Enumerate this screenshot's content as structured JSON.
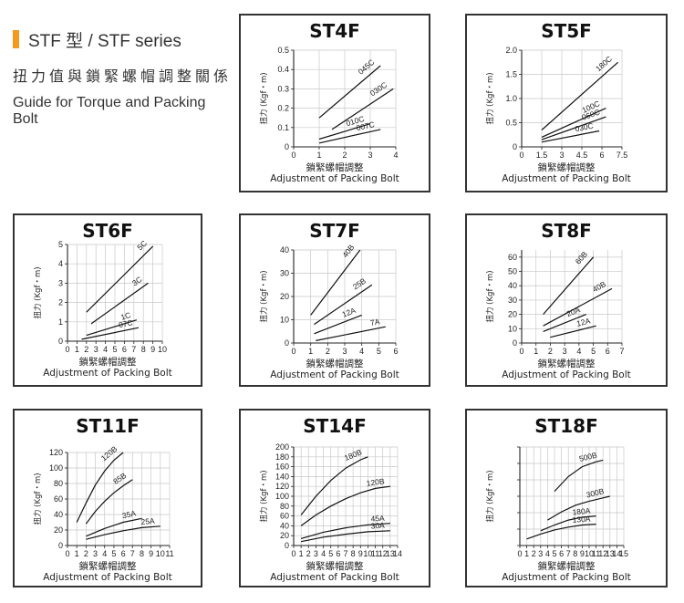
{
  "header": {
    "series_title": "STF 型 / STF series",
    "zh_title": "扭力值與鎖緊螺帽調整關係",
    "en_title": "Guide for Torque and Packing Bolt"
  },
  "chart_data": [
    {
      "type": "line",
      "title": "ST4F",
      "xlabel_zh": "鎖緊螺帽調整",
      "xlabel": "Adjustment of Packing Bolt",
      "ylabel": "扭力 (Kgf・m)",
      "xlim": [
        0,
        4
      ],
      "ylim": [
        0,
        0.5
      ],
      "xticks": [
        0,
        1,
        2,
        3,
        4
      ],
      "xtick_labels": [
        "0",
        "1",
        "2",
        "3",
        "4"
      ],
      "yticks": [
        0,
        0.1,
        0.2,
        0.3,
        0.4,
        0.5
      ],
      "ytick_labels": [
        "0",
        "0.1",
        "0.2",
        "0.3",
        "0.4",
        "0.5"
      ],
      "grid": true,
      "series": [
        {
          "name": "045C",
          "x": [
            1,
            3.4
          ],
          "y": [
            0.15,
            0.42
          ]
        },
        {
          "name": "030C",
          "x": [
            1.5,
            3.9
          ],
          "y": [
            0.09,
            0.3
          ]
        },
        {
          "name": "010C",
          "x": [
            1,
            3
          ],
          "y": [
            0.04,
            0.12
          ]
        },
        {
          "name": "007C",
          "x": [
            1,
            3.4
          ],
          "y": [
            0.02,
            0.09
          ]
        }
      ]
    },
    {
      "type": "line",
      "title": "ST5F",
      "xlabel_zh": "鎖緊螺帽調整",
      "xlabel": "Adjustment of Packing Bolt",
      "ylabel": "扭力 (Kgf・m)",
      "xlim": [
        0,
        7.5
      ],
      "ylim": [
        0,
        2.0
      ],
      "xticks": [
        0,
        1.5,
        3,
        4.5,
        6,
        7.5
      ],
      "xtick_labels": [
        "0",
        "1.5",
        "3",
        "4.5",
        "6",
        "7.5"
      ],
      "yticks": [
        0,
        0.5,
        1.0,
        1.5,
        2.0
      ],
      "ytick_labels": [
        "0",
        "0.5",
        "1.0",
        "1.5",
        "2.0"
      ],
      "grid": true,
      "series": [
        {
          "name": "180C",
          "x": [
            1.5,
            7.2
          ],
          "y": [
            0.35,
            1.75
          ]
        },
        {
          "name": "100C",
          "x": [
            1.5,
            6.3
          ],
          "y": [
            0.2,
            0.8
          ]
        },
        {
          "name": "060C",
          "x": [
            1.5,
            6.3
          ],
          "y": [
            0.15,
            0.62
          ]
        },
        {
          "name": "030C",
          "x": [
            1.5,
            5.8
          ],
          "y": [
            0.1,
            0.33
          ]
        }
      ]
    },
    {
      "type": "line",
      "title": "ST6F",
      "xlabel_zh": "鎖緊螺帽調整",
      "xlabel": "Adjustment of Packing Bolt",
      "ylabel": "扭力 (Kgf・m)",
      "xlim": [
        0,
        10
      ],
      "ylim": [
        0,
        5
      ],
      "xticks": [
        0,
        1,
        2,
        3,
        4,
        5,
        6,
        7,
        8,
        9,
        10
      ],
      "xtick_labels": [
        "0",
        "1",
        "2",
        "3",
        "4",
        "5",
        "6",
        "7",
        "8",
        "9",
        "10"
      ],
      "yticks": [
        0,
        1,
        2,
        3,
        4,
        5
      ],
      "ytick_labels": [
        "0",
        "1",
        "2",
        "3",
        "4",
        "5"
      ],
      "grid": true,
      "series": [
        {
          "name": "5C",
          "x": [
            2,
            9
          ],
          "y": [
            1.5,
            4.9
          ]
        },
        {
          "name": "3C",
          "x": [
            2.5,
            8.5
          ],
          "y": [
            0.9,
            3.0
          ]
        },
        {
          "name": "1C",
          "x": [
            2,
            7.3
          ],
          "y": [
            0.3,
            1.1
          ]
        },
        {
          "name": "07C",
          "x": [
            1.5,
            7.5
          ],
          "y": [
            0.1,
            0.7
          ]
        }
      ]
    },
    {
      "type": "line",
      "title": "ST7F",
      "xlabel_zh": "鎖緊螺帽調整",
      "xlabel": "Adjustment of Packing Bolt",
      "ylabel": "扭力 (Kgf・m)",
      "xlim": [
        0,
        6
      ],
      "ylim": [
        0,
        40
      ],
      "xticks": [
        0,
        1,
        2,
        3,
        4,
        5,
        6
      ],
      "xtick_labels": [
        "0",
        "1",
        "2",
        "3",
        "4",
        "5",
        "6"
      ],
      "yticks": [
        0,
        10,
        20,
        30,
        40
      ],
      "ytick_labels": [
        "0",
        "10",
        "20",
        "30",
        "40"
      ],
      "grid": true,
      "series": [
        {
          "name": "40B",
          "x": [
            1,
            3.9
          ],
          "y": [
            12,
            40
          ]
        },
        {
          "name": "25B",
          "x": [
            1.2,
            4.6
          ],
          "y": [
            8,
            25
          ]
        },
        {
          "name": "12A",
          "x": [
            1.2,
            4.0
          ],
          "y": [
            4,
            12
          ]
        },
        {
          "name": "7A",
          "x": [
            1.3,
            5.4
          ],
          "y": [
            1,
            7
          ]
        }
      ]
    },
    {
      "type": "line",
      "title": "ST8F",
      "xlabel_zh": "鎖緊螺帽調整",
      "xlabel": "Adjustment of Packing Bolt",
      "ylabel": "扭力 (Kgf・m)",
      "xlim": [
        0,
        7
      ],
      "ylim": [
        0,
        65
      ],
      "xticks": [
        0,
        1,
        2,
        3,
        4,
        5,
        6,
        7
      ],
      "xtick_labels": [
        "0",
        "1",
        "2",
        "3",
        "4",
        "5",
        "6",
        "7"
      ],
      "yticks": [
        0,
        10,
        20,
        30,
        40,
        50,
        60
      ],
      "ytick_labels": [
        "0",
        "10",
        "20",
        "30",
        "40",
        "50",
        "60"
      ],
      "grid": true,
      "series": [
        {
          "name": "60B",
          "x": [
            1.5,
            5.0
          ],
          "y": [
            20,
            60
          ]
        },
        {
          "name": "40B",
          "x": [
            1.5,
            6.3
          ],
          "y": [
            12,
            38
          ]
        },
        {
          "name": "20A",
          "x": [
            1.5,
            4.5
          ],
          "y": [
            8,
            20
          ]
        },
        {
          "name": "12A",
          "x": [
            2,
            5.2
          ],
          "y": [
            4,
            12
          ]
        }
      ]
    },
    {
      "type": "line",
      "title": "ST11F",
      "xlabel_zh": "鎖緊螺帽調整",
      "xlabel": "Adjustment of Packing Bolt",
      "ylabel": "扭力 (Kgf・m)",
      "xlim": [
        0,
        11
      ],
      "ylim": [
        0,
        120
      ],
      "xticks": [
        0,
        1,
        2,
        3,
        4,
        5,
        6,
        7,
        8,
        9,
        10,
        11
      ],
      "xtick_labels": [
        "0",
        "1",
        "2",
        "3",
        "4",
        "5",
        "6",
        "7",
        "8",
        "9",
        "10",
        "11"
      ],
      "yticks": [
        0,
        20,
        40,
        60,
        80,
        100,
        120
      ],
      "ytick_labels": [
        "0",
        "20",
        "40",
        "60",
        "80",
        "100",
        "120"
      ],
      "grid": true,
      "series": [
        {
          "name": "120B",
          "x": [
            1,
            2,
            3,
            4,
            5,
            6
          ],
          "y": [
            30,
            55,
            78,
            96,
            110,
            120
          ]
        },
        {
          "name": "85B",
          "x": [
            2,
            3,
            4,
            5,
            6,
            7
          ],
          "y": [
            28,
            44,
            57,
            68,
            77,
            85
          ]
        },
        {
          "name": "35A",
          "x": [
            2,
            4,
            6,
            8
          ],
          "y": [
            12,
            22,
            30,
            35
          ]
        },
        {
          "name": "25A",
          "x": [
            2,
            4,
            6,
            8,
            10
          ],
          "y": [
            8,
            14,
            19,
            23,
            25
          ]
        }
      ]
    },
    {
      "type": "line",
      "title": "ST14F",
      "xlabel_zh": "鎖緊螺帽調整",
      "xlabel": "Adjustment of Packing Bolt",
      "ylabel": "扭力 (Kgf・m)",
      "xlim": [
        0,
        14
      ],
      "ylim": [
        0,
        200
      ],
      "xticks": [
        0,
        1,
        2,
        3,
        4,
        5,
        6,
        7,
        8,
        9,
        10,
        11,
        12,
        13,
        14
      ],
      "xtick_labels": [
        "0",
        "1",
        "2",
        "3",
        "4",
        "5",
        "6",
        "7",
        "8",
        "9",
        "10",
        "11",
        "12",
        "13",
        "14"
      ],
      "yticks": [
        0,
        20,
        40,
        60,
        80,
        100,
        120,
        140,
        160,
        180,
        200
      ],
      "ytick_labels": [
        "0",
        "20",
        "40",
        "60",
        "80",
        "100",
        "120",
        "140",
        "160",
        "180",
        "200"
      ],
      "grid": true,
      "series": [
        {
          "name": "180B",
          "x": [
            1,
            3,
            5,
            7,
            9,
            10
          ],
          "y": [
            62,
            100,
            132,
            157,
            174,
            180
          ]
        },
        {
          "name": "120B",
          "x": [
            1,
            3,
            5,
            7,
            9,
            11,
            13
          ],
          "y": [
            40,
            62,
            80,
            95,
            107,
            116,
            120
          ]
        },
        {
          "name": "45A",
          "x": [
            1,
            4,
            7,
            10,
            13
          ],
          "y": [
            14,
            27,
            36,
            42,
            45
          ]
        },
        {
          "name": "30A",
          "x": [
            1,
            4,
            7,
            10,
            13
          ],
          "y": [
            8,
            17,
            23,
            28,
            30
          ]
        }
      ]
    },
    {
      "type": "line",
      "title": "ST18F",
      "xlabel_zh": "鎖緊螺帽調整",
      "xlabel": "Adjustment of Packing Bolt",
      "ylabel": "扭力 (Kgf・m)",
      "xlim": [
        0,
        15
      ],
      "ylim": [
        0,
        600
      ],
      "xticks": [
        0,
        1,
        2,
        3,
        4,
        5,
        6,
        7,
        8,
        9,
        10,
        11,
        12,
        13,
        14,
        15
      ],
      "xtick_labels": [
        "0",
        "1",
        "2",
        "3",
        "4",
        "5",
        "6",
        "7",
        "8",
        "9",
        "10",
        "11",
        "12",
        "13",
        "14",
        "15"
      ],
      "yticks": [
        0,
        100,
        200,
        300,
        400,
        500,
        600
      ],
      "ytick_labels": [
        "",
        "",
        "",
        "",
        "",
        "",
        ""
      ],
      "grid": true,
      "series": [
        {
          "name": "500B",
          "x": [
            5,
            7,
            9,
            11,
            12
          ],
          "y": [
            330,
            420,
            480,
            510,
            520
          ]
        },
        {
          "name": "300B",
          "x": [
            4,
            6,
            8,
            10,
            12,
            13
          ],
          "y": [
            155,
            205,
            245,
            270,
            290,
            300
          ]
        },
        {
          "name": "180A",
          "x": [
            3,
            5,
            7,
            9,
            11
          ],
          "y": [
            90,
            125,
            155,
            172,
            180
          ]
        },
        {
          "name": "130A",
          "x": [
            1,
            3,
            5,
            7,
            9,
            11
          ],
          "y": [
            40,
            70,
            95,
            112,
            125,
            130
          ]
        }
      ]
    }
  ]
}
